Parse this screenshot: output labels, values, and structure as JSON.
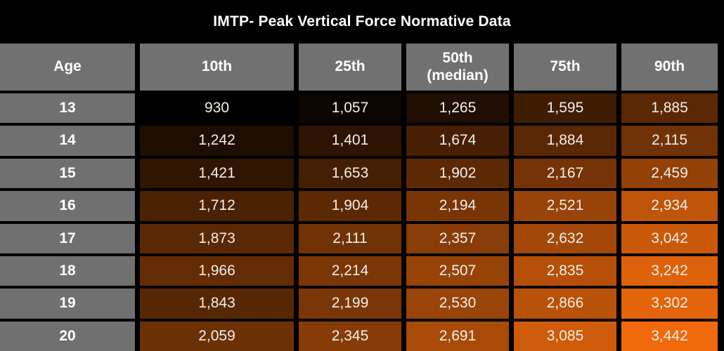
{
  "title": "IMTP- Peak Vertical Force Normative Data",
  "columns": [
    {
      "label": "Age"
    },
    {
      "label": "10th"
    },
    {
      "label": "25th"
    },
    {
      "label": "50th",
      "sublabel": "(median)"
    },
    {
      "label": "75th"
    },
    {
      "label": "90th"
    }
  ],
  "chart_data": {
    "type": "heatmap",
    "title": "IMTP- Peak Vertical Force Normative Data",
    "row_header": "Age",
    "column_headers": [
      "10th",
      "25th",
      "50th (median)",
      "75th",
      "90th"
    ],
    "rows": [
      {
        "age": "13",
        "values": [
          930,
          1057,
          1265,
          1595,
          1885
        ]
      },
      {
        "age": "14",
        "values": [
          1242,
          1401,
          1674,
          1884,
          2115
        ]
      },
      {
        "age": "15",
        "values": [
          1421,
          1653,
          1902,
          2167,
          2459
        ]
      },
      {
        "age": "16",
        "values": [
          1712,
          1904,
          2194,
          2521,
          2934
        ]
      },
      {
        "age": "17",
        "values": [
          1873,
          2111,
          2357,
          2632,
          3042
        ]
      },
      {
        "age": "18",
        "values": [
          1966,
          2214,
          2507,
          2835,
          3242
        ]
      },
      {
        "age": "19",
        "values": [
          1843,
          2199,
          2530,
          2866,
          3302
        ]
      },
      {
        "age": "20",
        "values": [
          2059,
          2345,
          2691,
          3085,
          3442
        ]
      }
    ],
    "heatmap": {
      "min_value": 930,
      "max_value": 3442,
      "min_color": "#000000",
      "max_color": "#F06A0C"
    }
  },
  "colors": {
    "background": "#000000",
    "header_bg": "#717171",
    "age_bg": "#707070",
    "title_text": "#FFFFFF",
    "header_text": "#FFFFFF",
    "value_text": "#F3EFE9"
  }
}
